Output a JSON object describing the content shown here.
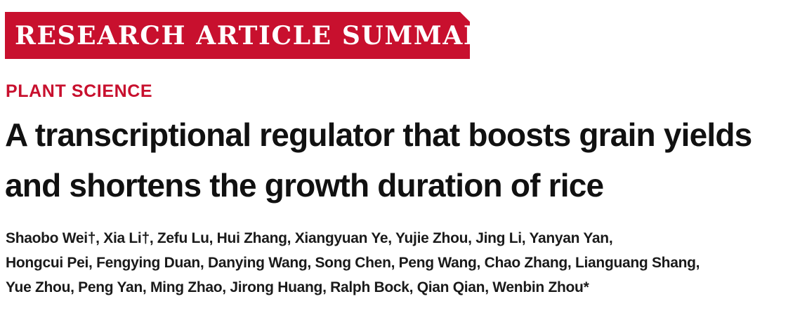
{
  "banner": {
    "label": "RESEARCH ARTICLE SUMMARY",
    "color": "#c8102e"
  },
  "section": {
    "label": "PLANT SCIENCE"
  },
  "title": {
    "lines": [
      "A transcriptional regulator that boosts grain yields",
      "and shortens the growth duration of rice"
    ]
  },
  "authors": {
    "lines": [
      "Shaobo Wei†, Xia Li†, Zefu Lu, Hui Zhang, Xiangyuan Ye, Yujie Zhou, Jing Li, Yanyan Yan,",
      "Hongcui Pei, Fengying Duan, Danying Wang, Song Chen, Peng Wang, Chao Zhang, Lianguang Shang,",
      "Yue Zhou, Peng Yan, Ming Zhao, Jirong Huang, Ralph Bock, Qian Qian, Wenbin Zhou*"
    ]
  }
}
